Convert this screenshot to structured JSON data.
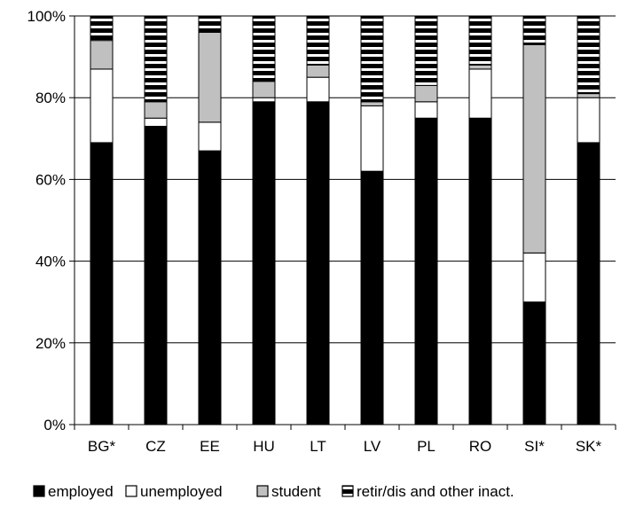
{
  "chart_data": {
    "type": "bar",
    "stacked": true,
    "normalized": true,
    "categories": [
      "BG*",
      "CZ",
      "EE",
      "HU",
      "LT",
      "LV",
      "PL",
      "RO",
      "SI*",
      "SK*"
    ],
    "series": [
      {
        "name": "employed",
        "color": "#000000",
        "pattern": "solid",
        "values": [
          69,
          73,
          67,
          79,
          79,
          62,
          75,
          75,
          30,
          69
        ]
      },
      {
        "name": "unemployed",
        "color": "#ffffff",
        "pattern": "solid",
        "values": [
          18,
          2,
          7,
          1,
          6,
          16,
          4,
          12,
          12,
          11
        ]
      },
      {
        "name": "student",
        "color": "#c0c0c0",
        "pattern": "solid",
        "values": [
          7,
          4,
          22,
          4,
          3,
          1,
          4,
          1,
          51,
          1
        ]
      },
      {
        "name": "retir/dis and other inact.",
        "color": "#000000",
        "pattern": "horizontal-stripes",
        "values": [
          6,
          21,
          4,
          16,
          12,
          21,
          17,
          12,
          7,
          19
        ]
      }
    ],
    "y_ticks": [
      "0%",
      "20%",
      "40%",
      "60%",
      "80%",
      "100%"
    ],
    "ylim": [
      0,
      100
    ],
    "title": "",
    "xlabel": "",
    "ylabel": "",
    "grid": true,
    "legend_position": "bottom"
  },
  "legend": {
    "entries": [
      {
        "glyph": "■",
        "label": "employed"
      },
      {
        "glyph": "□",
        "label": "unemployed"
      },
      {
        "glyph": "▩",
        "label": "student"
      },
      {
        "glyph": "▤",
        "label": "retir/dis and other inact."
      }
    ]
  }
}
